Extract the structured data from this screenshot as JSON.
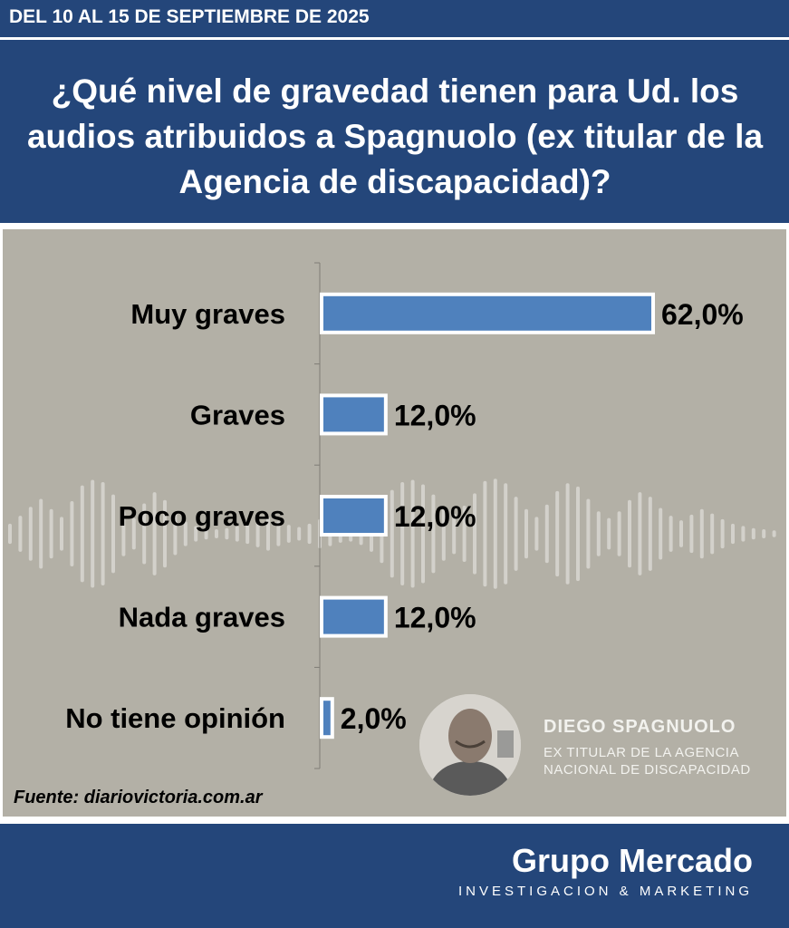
{
  "header": {
    "date_range": "DEL 10 AL 15 DE SEPTIEMBRE DE 2025",
    "question": "¿Qué nivel de gravedad tienen para Ud. los audios atribuidos a Spagnuolo (ex titular de la Agencia de discapacidad)?"
  },
  "chart_data": {
    "type": "bar",
    "orientation": "horizontal",
    "categories": [
      "Muy graves",
      "Graves",
      "Poco graves",
      "Nada graves",
      "No tiene opinión"
    ],
    "values": [
      62.0,
      12.0,
      12.0,
      12.0,
      2.0
    ],
    "value_labels": [
      "62,0%",
      "12,0%",
      "12,0%",
      "12,0%",
      "2,0%"
    ],
    "unit": "%",
    "bar_color": "#4f81bd",
    "grid": false,
    "legend": false
  },
  "source": "Fuente: diariovictoria.com.ar",
  "person": {
    "name": "DIEGO SPAGNUOLO",
    "role_line1": "EX TITULAR DE LA AGENCIA",
    "role_line2": "NACIONAL DE DISCAPACIDAD"
  },
  "footer": {
    "brand": "Grupo Mercado",
    "tagline": "INVESTIGACION & MARKETING"
  },
  "colors": {
    "header_bg": "#24467a",
    "chart_bg": "#b3b0a6",
    "bar": "#4f81bd"
  }
}
